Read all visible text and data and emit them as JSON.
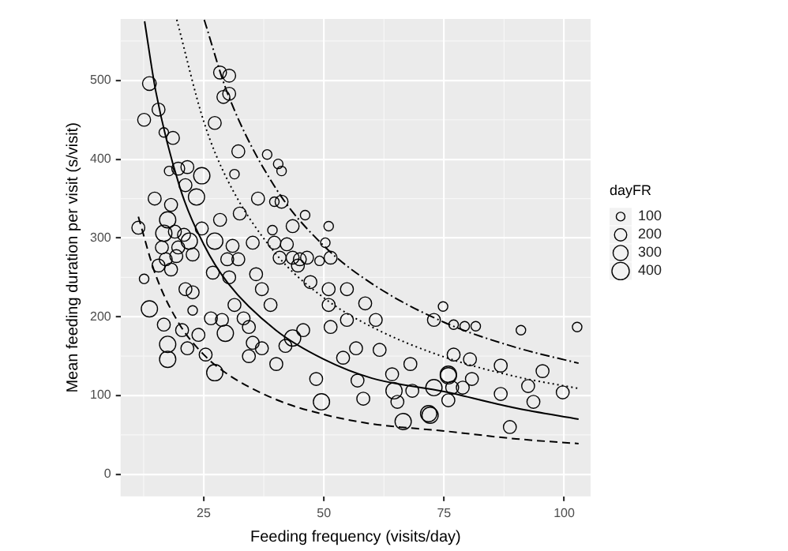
{
  "chart_data": {
    "type": "bubble",
    "xlabel": "Feeding frequency (visits/day)",
    "ylabel": "Mean feeding duration per visit (s/visit)",
    "legend_title": "dayFR",
    "grid": true,
    "size_legend": [
      100,
      200,
      300,
      400
    ],
    "xlim": [
      7.7,
      105.5
    ],
    "ylim": [
      -28,
      578
    ],
    "xticks": [
      25,
      50,
      75,
      100
    ],
    "yticks": [
      0,
      100,
      200,
      300,
      400,
      500
    ],
    "series": [
      {
        "color": "#000000",
        "x": [
          13.7,
          12.6,
          15.6,
          16.7,
          18.6,
          28.4,
          30.3,
          29.1,
          30.3,
          27.3,
          32.2,
          31.4,
          38.2,
          40.5,
          41.2,
          19.7,
          21.6,
          17.8,
          24.6,
          21.2,
          23.5,
          14.8,
          36.3,
          39.7,
          41.2,
          46.1,
          32.5,
          28.4,
          18.2,
          17.5,
          11.4,
          16.7,
          19.0,
          20.9,
          22.0,
          16.3,
          19.7,
          24.6,
          27.3,
          31.0,
          35.2,
          39.3,
          43.5,
          39.7,
          42.3,
          51.0,
          50.3,
          40.8,
          43.5,
          45.0,
          46.5,
          49.1,
          51.4,
          17.1,
          19.3,
          22.7,
          29.9,
          32.2,
          12.6,
          13.7,
          16.7,
          17.5,
          17.5,
          20.5,
          21.6,
          23.9,
          25.4,
          27.3,
          22.7,
          15.6,
          18.2,
          21.2,
          22.7,
          26.9,
          30.3,
          26.5,
          28.8,
          29.5,
          31.4,
          33.3,
          34.4,
          35.9,
          37.1,
          38.9,
          35.2,
          34.4,
          37.1,
          40.1,
          42.0,
          43.5,
          45.7,
          44.6,
          47.2,
          51.0,
          48.4,
          49.5,
          51.4,
          54.8,
          56.7,
          54.0,
          57.0,
          58.2,
          60.8,
          61.6,
          64.2,
          64.6,
          65.3,
          66.5,
          68.4,
          68.0,
          71.8,
          72.9,
          75.9,
          54.8,
          58.6,
          51.0,
          74.8,
          77.0,
          79.3,
          81.6,
          91.0,
          102.7,
          77.0,
          80.4,
          86.8,
          75.9,
          80.8,
          95.5,
          92.5,
          99.7,
          72.9,
          76.7,
          78.9,
          86.8,
          75.9,
          93.6,
          72.1,
          88.7
        ],
        "values": [
          496,
          450,
          463,
          434,
          427,
          510,
          506,
          479,
          483,
          446,
          410,
          381,
          406,
          394,
          385,
          388,
          390,
          385,
          379,
          367,
          352,
          350,
          350,
          346,
          346,
          329,
          331,
          323,
          342,
          323,
          313,
          306,
          308,
          304,
          296,
          288,
          288,
          312,
          296,
          290,
          294,
          310,
          315,
          294,
          292,
          315,
          294,
          275,
          275,
          273,
          275,
          271,
          275,
          273,
          277,
          279,
          273,
          273,
          248,
          210,
          190,
          165,
          146,
          183,
          160,
          177,
          152,
          129,
          208,
          265,
          260,
          235,
          231,
          256,
          250,
          198,
          196,
          179,
          215,
          198,
          187,
          254,
          235,
          215,
          167,
          150,
          160,
          140,
          163,
          173,
          183,
          265,
          244,
          215,
          121,
          92,
          187,
          196,
          160,
          148,
          119,
          96,
          196,
          158,
          127,
          106,
          92,
          67,
          106,
          140,
          77,
          196,
          125,
          235,
          217,
          235,
          213,
          190,
          188,
          188,
          183,
          187,
          152,
          146,
          138,
          127,
          121,
          131,
          112,
          104,
          110,
          110,
          110,
          102,
          94,
          92,
          75,
          60
        ],
        "sizes": [
          250,
          220,
          220,
          120,
          220,
          220,
          220,
          220,
          220,
          220,
          220,
          120,
          120,
          120,
          120,
          220,
          220,
          120,
          350,
          220,
          350,
          220,
          220,
          120,
          220,
          120,
          220,
          220,
          220,
          350,
          220,
          350,
          220,
          220,
          350,
          220,
          220,
          220,
          350,
          220,
          220,
          120,
          220,
          220,
          220,
          120,
          120,
          220,
          220,
          220,
          220,
          120,
          220,
          220,
          220,
          220,
          220,
          220,
          120,
          350,
          220,
          350,
          350,
          220,
          220,
          220,
          220,
          350,
          120,
          220,
          220,
          220,
          220,
          220,
          220,
          220,
          220,
          350,
          220,
          220,
          220,
          220,
          220,
          220,
          220,
          220,
          220,
          220,
          220,
          350,
          220,
          220,
          220,
          220,
          220,
          350,
          220,
          220,
          220,
          220,
          220,
          220,
          220,
          220,
          220,
          350,
          220,
          350,
          220,
          220,
          350,
          220,
          350,
          220,
          220,
          220,
          120,
          120,
          120,
          120,
          120,
          120,
          220,
          220,
          220,
          350,
          220,
          220,
          220,
          220,
          350,
          220,
          220,
          220,
          220,
          220,
          350,
          220
        ]
      },
      {
        "type": "line",
        "line_style": "solid",
        "color": "#000000",
        "x": [
          12.7,
          15,
          20,
          25,
          30,
          40,
          50,
          60,
          75,
          90,
          103
        ],
        "values": [
          575,
          487,
          365,
          292,
          243,
          183,
          146,
          122,
          105,
          84,
          70
        ]
      },
      {
        "type": "line",
        "line_style": "dashed",
        "color": "#000000",
        "x": [
          11.4,
          15,
          20,
          25,
          30,
          40,
          50,
          60,
          75,
          90,
          103
        ],
        "values": [
          327,
          253,
          190,
          152,
          127,
          95,
          76,
          64,
          55,
          45,
          39
        ]
      },
      {
        "type": "line",
        "line_style": "dotted",
        "color": "#000000",
        "x": [
          19.4,
          25,
          30,
          40,
          50,
          60,
          75,
          90,
          103
        ],
        "values": [
          577,
          448,
          373,
          280,
          224,
          187,
          149,
          124,
          109
        ]
      },
      {
        "type": "line",
        "line_style": "dashdot",
        "color": "#000000",
        "x": [
          25.1,
          30,
          40,
          50,
          60,
          75,
          90,
          103
        ],
        "values": [
          577,
          483,
          363,
          290,
          242,
          193,
          161,
          141
        ]
      }
    ]
  }
}
